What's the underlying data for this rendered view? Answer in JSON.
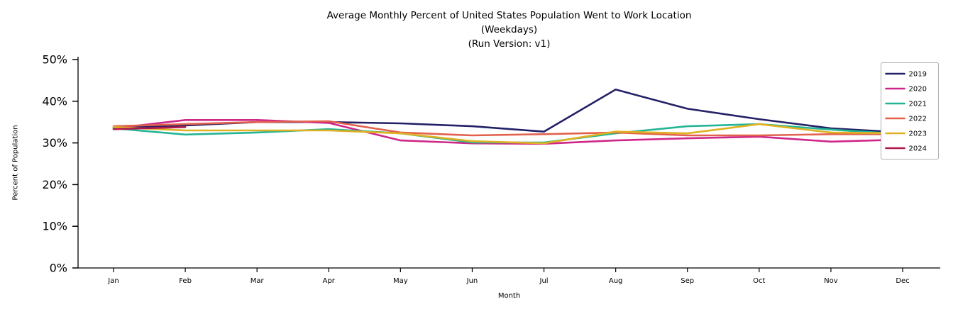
{
  "title": {
    "line1": "Average Monthly Percent of United States Population Went to Work Location",
    "line2": "(Weekdays)",
    "line3": "(Run Version: v1)"
  },
  "chart_data": {
    "type": "line",
    "title": "Average Monthly Percent of United States Population Went to Work Location (Weekdays) (Run Version: v1)",
    "xlabel": "Month",
    "ylabel": "Percent of Population",
    "categories": [
      "Jan",
      "Feb",
      "Mar",
      "Apr",
      "May",
      "Jun",
      "Jul",
      "Aug",
      "Sep",
      "Oct",
      "Nov",
      "Dec"
    ],
    "ylim": [
      0,
      50
    ],
    "yticks": [
      0,
      10,
      20,
      30,
      40,
      50
    ],
    "yticklabels": [
      "0%",
      "10%",
      "20%",
      "30%",
      "40%",
      "50%"
    ],
    "grid": false,
    "legend_position": "upper right",
    "series": [
      {
        "name": "2019",
        "color": "#232066",
        "values": [
          33.7,
          34.2,
          35.0,
          35.0,
          34.7,
          34.0,
          32.7,
          42.8,
          38.2,
          35.7,
          33.5,
          32.5
        ]
      },
      {
        "name": "2020",
        "color": "#cf268a",
        "values": [
          33.5,
          35.5,
          35.5,
          34.8,
          30.6,
          29.9,
          29.8,
          30.6,
          31.1,
          31.5,
          30.3,
          30.8
        ]
      },
      {
        "name": "2021",
        "color": "#23b595",
        "values": [
          33.5,
          32.0,
          32.5,
          33.3,
          32.3,
          30.1,
          30.1,
          32.3,
          34.0,
          34.5,
          33.2,
          32.1
        ]
      },
      {
        "name": "2022",
        "color": "#e1614d",
        "values": [
          34.0,
          34.5,
          35.0,
          35.2,
          32.5,
          31.8,
          32.1,
          32.5,
          31.8,
          31.8,
          32.1,
          32.1
        ]
      },
      {
        "name": "2023",
        "color": "#e0b122",
        "values": [
          33.8,
          33.0,
          33.0,
          33.0,
          32.3,
          30.4,
          29.9,
          32.7,
          32.3,
          34.5,
          32.5,
          32.3
        ]
      },
      {
        "name": "2024",
        "color": "#b0174f",
        "values": [
          33.3,
          33.8
        ]
      }
    ]
  }
}
